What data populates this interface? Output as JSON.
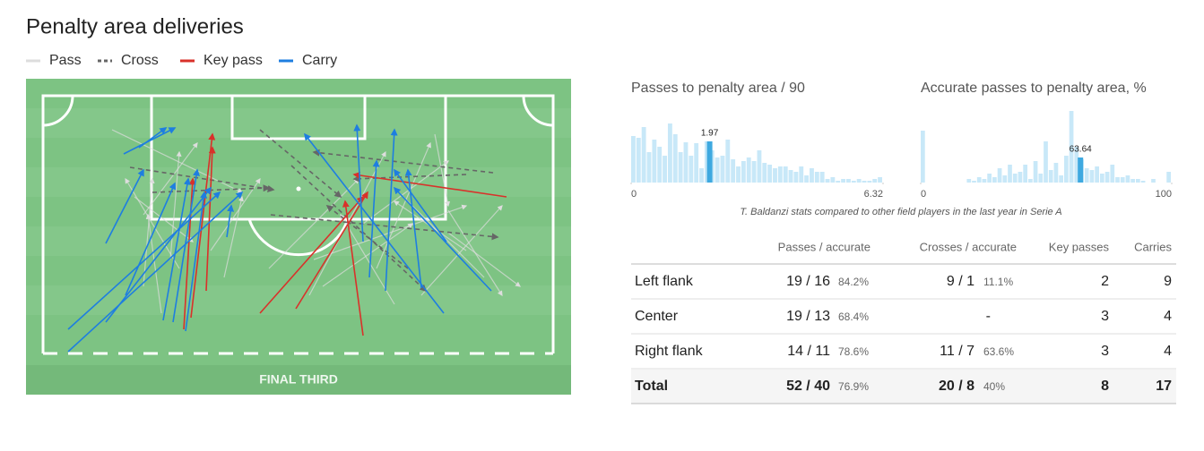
{
  "header": {
    "title": "Penalty area deliveries"
  },
  "legend": [
    {
      "label": "Pass",
      "color": "#dddddd",
      "dashed": false
    },
    {
      "label": "Cross",
      "color": "#666666",
      "dashed": true
    },
    {
      "label": "Key pass",
      "color": "#d9312a",
      "dashed": false
    },
    {
      "label": "Carry",
      "color": "#1e7ee0",
      "dashed": false
    }
  ],
  "pitch": {
    "label": "FINAL THIRD"
  },
  "histograms": [
    {
      "type": "histogram",
      "title": "Passes to penalty area / 90",
      "color": "#c8e8f8",
      "highlight_color": "#3ea9e0",
      "values": [
        52,
        50,
        62,
        34,
        48,
        40,
        30,
        66,
        54,
        34,
        45,
        30,
        44,
        16,
        46,
        36,
        28,
        30,
        48,
        26,
        18,
        24,
        28,
        24,
        36,
        22,
        20,
        16,
        18,
        18,
        14,
        12,
        18,
        8,
        16,
        12,
        12,
        4,
        6,
        2,
        4,
        4,
        2,
        4,
        2,
        2,
        4,
        6
      ],
      "ylim": [
        0,
        80
      ],
      "xlim": [
        0,
        6.32
      ],
      "xticks": [
        0,
        6.32
      ],
      "highlight": 1.97
    },
    {
      "type": "histogram",
      "title": "Accurate passes to penalty area, %",
      "color": "#c8e8f8",
      "highlight_color": "#3ea9e0",
      "values": [
        58,
        0,
        0,
        0,
        0,
        0,
        0,
        0,
        0,
        4,
        2,
        6,
        4,
        10,
        6,
        16,
        8,
        20,
        10,
        12,
        20,
        4,
        24,
        10,
        46,
        14,
        22,
        8,
        30,
        80,
        40,
        26,
        16,
        14,
        18,
        10,
        12,
        20,
        6,
        6,
        8,
        4,
        4,
        2,
        0,
        4,
        0,
        0,
        12
      ],
      "ylim": [
        0,
        80
      ],
      "xlim": [
        0,
        100
      ],
      "xticks": [
        0,
        100
      ],
      "highlight": 63.64
    }
  ],
  "caption": "T. Baldanzi stats compared to other field players in the last year in Serie A",
  "table": {
    "columns": [
      "Passes / accurate",
      "Crosses / accurate",
      "Key passes",
      "Carries"
    ],
    "rows": [
      {
        "label": "Left flank",
        "passes": "19 / 16",
        "passes_pct": "84.2%",
        "crosses": "9 / 1",
        "crosses_pct": "11.1%",
        "key_passes": 2,
        "carries": 9
      },
      {
        "label": "Center",
        "passes": "19 / 13",
        "passes_pct": "68.4%",
        "crosses": "-",
        "key_passes": 3,
        "carries": 4
      },
      {
        "label": "Right flank",
        "passes": "14 / 11",
        "passes_pct": "78.6%",
        "crosses": "11 / 7",
        "crosses_pct": "63.6%",
        "key_passes": 3,
        "carries": 4
      },
      {
        "label": "Total",
        "passes": "52 / 40",
        "passes_pct": "76.9%",
        "crosses": "20 / 8",
        "crosses_pct": "40%",
        "key_passes": 8,
        "carries": 17
      }
    ]
  }
}
